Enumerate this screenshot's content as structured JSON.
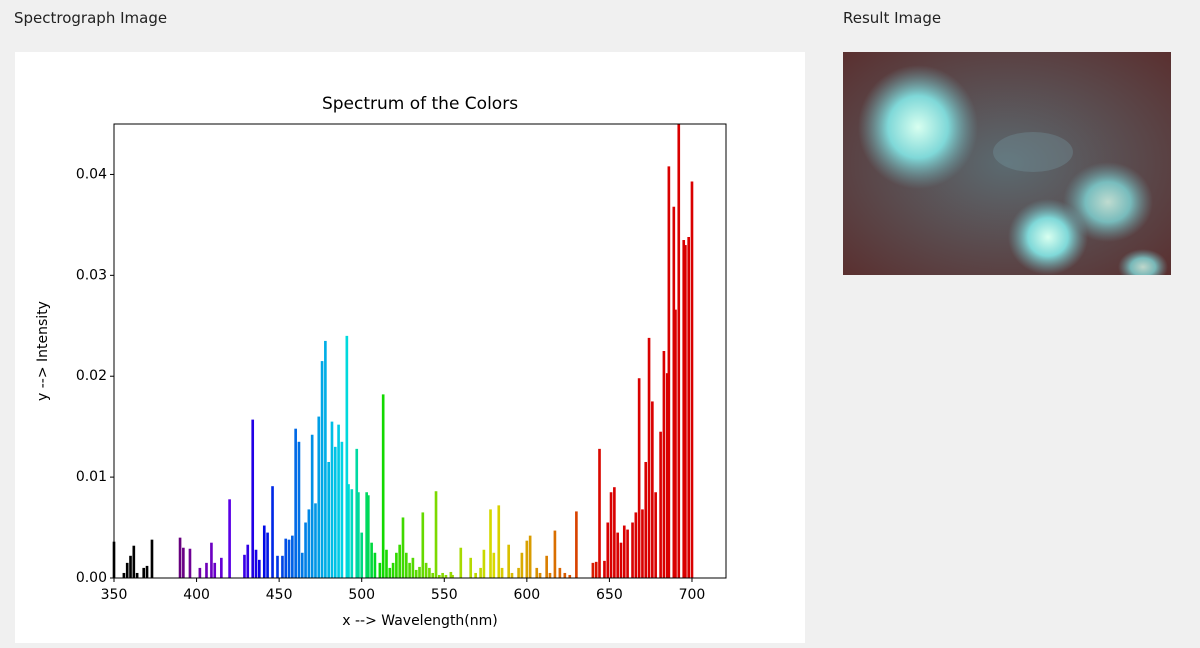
{
  "labels": {
    "left": "Spectrograph Image",
    "right": "Result Image"
  },
  "chart_data": {
    "type": "bar",
    "title": "Spectrum of the Colors",
    "xlabel": "x --> Wavelength(nm)",
    "ylabel": "y --> Intensity",
    "color_scale": "wavelength",
    "x": [
      350,
      356,
      358,
      360,
      362,
      364,
      368,
      370,
      373,
      390,
      392,
      396,
      402,
      406,
      409,
      411,
      415,
      420,
      429,
      431,
      434,
      436,
      438,
      441,
      443,
      446,
      449,
      452,
      454,
      456,
      458,
      460,
      462,
      464,
      466,
      468,
      470,
      472,
      474,
      476,
      478,
      480,
      482,
      484,
      486,
      488,
      491,
      492,
      494,
      497,
      498,
      500,
      503,
      504,
      506,
      508,
      511,
      513,
      515,
      517,
      519,
      521,
      523,
      525,
      527,
      529,
      531,
      533,
      535,
      537,
      539,
      541,
      543,
      545,
      547,
      549,
      551,
      554,
      555,
      560,
      566,
      569,
      572,
      574,
      578,
      580,
      583,
      585,
      589,
      591,
      595,
      597,
      600,
      602,
      606,
      608,
      612,
      614,
      617,
      620,
      623,
      626,
      630,
      640,
      642,
      644,
      647,
      649,
      651,
      653,
      655,
      657,
      659,
      661,
      664,
      666,
      668,
      670,
      672,
      674,
      676,
      678,
      681,
      683,
      685,
      686,
      689,
      690,
      692,
      695,
      696,
      698,
      700
    ],
    "values": [
      0.0036,
      0.0005,
      0.0015,
      0.0022,
      0.0032,
      0.0005,
      0.001,
      0.0012,
      0.0038,
      0.004,
      0.003,
      0.0029,
      0.001,
      0.0015,
      0.0035,
      0.0015,
      0.002,
      0.0078,
      0.0023,
      0.0033,
      0.0157,
      0.0028,
      0.0018,
      0.0052,
      0.0045,
      0.0091,
      0.0022,
      0.0022,
      0.0039,
      0.0038,
      0.0042,
      0.0148,
      0.0135,
      0.0025,
      0.0055,
      0.0068,
      0.0142,
      0.0074,
      0.016,
      0.0215,
      0.0235,
      0.0115,
      0.0155,
      0.013,
      0.0152,
      0.0135,
      0.024,
      0.0093,
      0.0088,
      0.0128,
      0.0085,
      0.0045,
      0.0085,
      0.0082,
      0.0035,
      0.0025,
      0.0015,
      0.0182,
      0.0028,
      0.001,
      0.0015,
      0.0025,
      0.0033,
      0.006,
      0.0025,
      0.0015,
      0.002,
      0.0008,
      0.0011,
      0.0065,
      0.0015,
      0.001,
      0.0005,
      0.0086,
      0.0003,
      0.0005,
      0.0003,
      0.0006,
      0.0003,
      0.003,
      0.002,
      0.0005,
      0.001,
      0.0028,
      0.0068,
      0.0025,
      0.0072,
      0.001,
      0.0033,
      0.0005,
      0.001,
      0.0025,
      0.0037,
      0.0042,
      0.001,
      0.0005,
      0.0022,
      0.0005,
      0.0047,
      0.001,
      0.0005,
      0.0003,
      0.0066,
      0.0015,
      0.0016,
      0.0128,
      0.0017,
      0.0055,
      0.0085,
      0.009,
      0.0045,
      0.0035,
      0.0052,
      0.0048,
      0.0055,
      0.0065,
      0.0198,
      0.0068,
      0.0115,
      0.0238,
      0.0175,
      0.0085,
      0.0145,
      0.0225,
      0.0203,
      0.0408,
      0.0368,
      0.0266,
      0.045,
      0.0335,
      0.033,
      0.0338,
      0.0393
    ],
    "xlim": [
      350,
      720.6
    ],
    "ylim": [
      0,
      0.045
    ],
    "xticks": [
      350,
      400,
      450,
      500,
      550,
      600,
      650,
      700
    ],
    "yticks": [
      {
        "value": 0,
        "label": "0.00"
      },
      {
        "value": 0.01,
        "label": "0.01"
      },
      {
        "value": 0.02,
        "label": "0.02"
      },
      {
        "value": 0.03,
        "label": "0.03"
      },
      {
        "value": 0.04,
        "label": "0.04"
      }
    ]
  }
}
